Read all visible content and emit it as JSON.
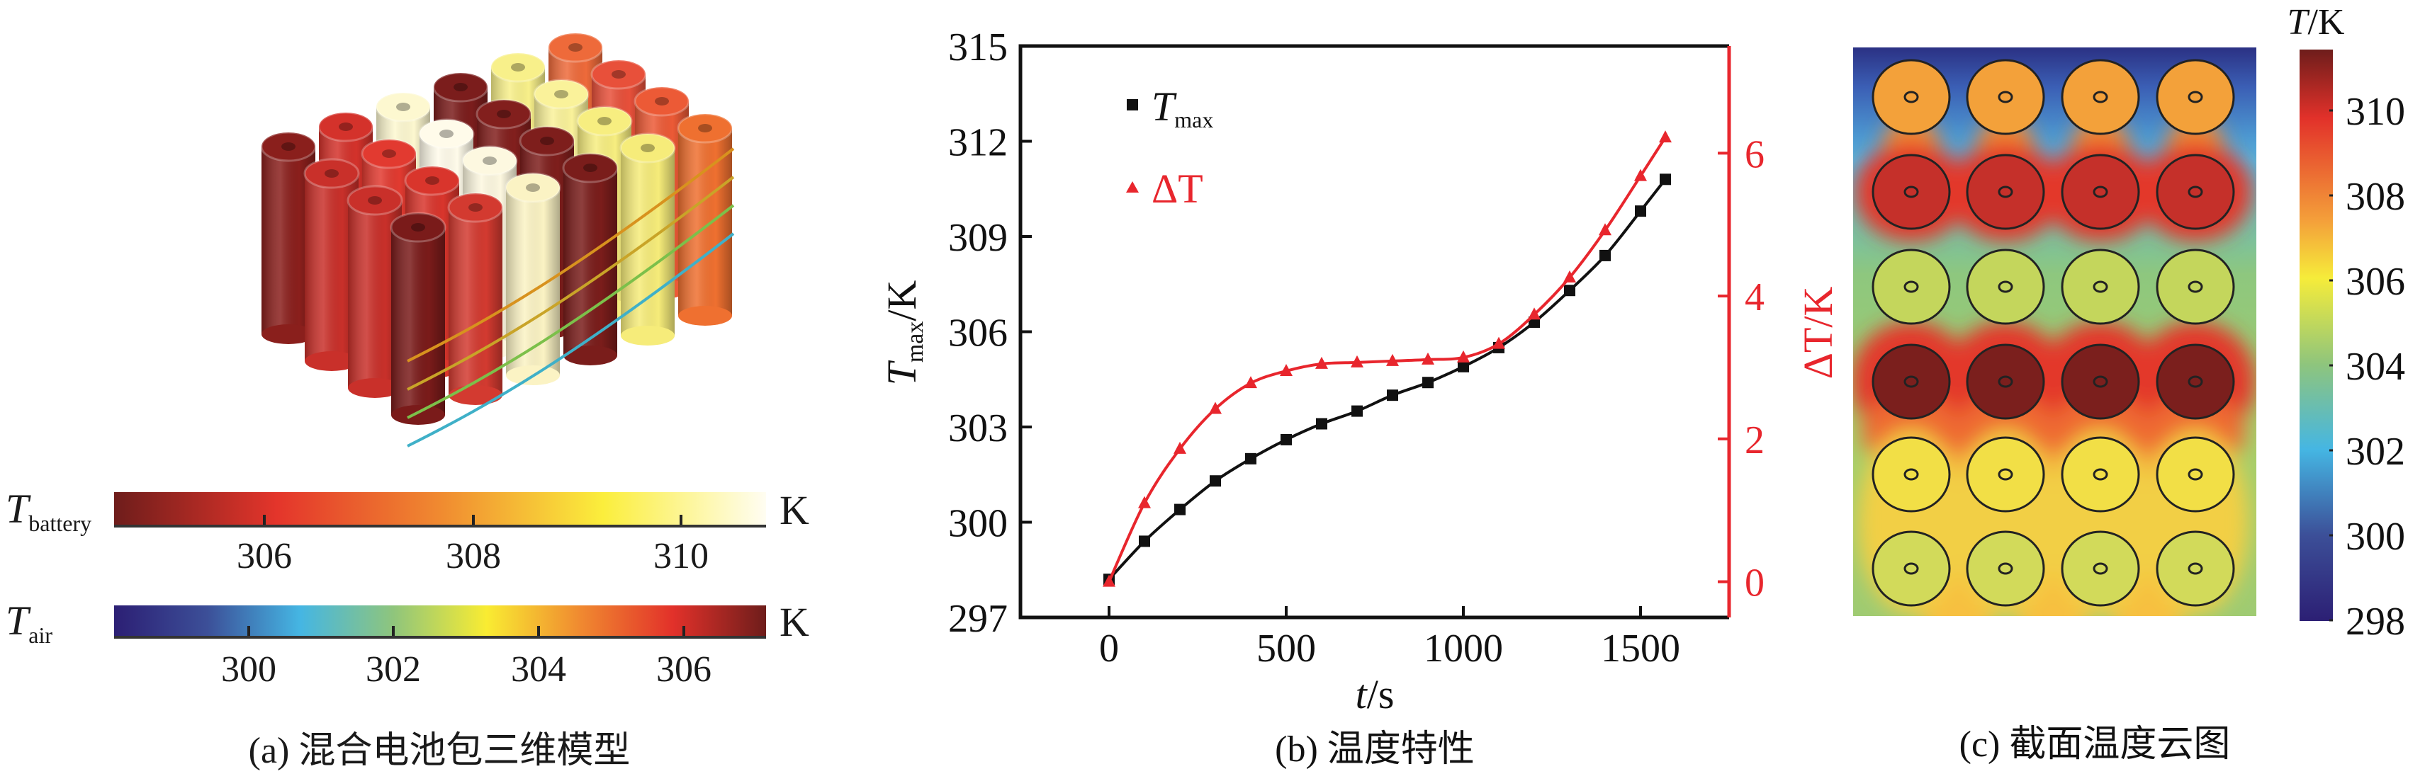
{
  "panel_a": {
    "caption": "(a) 混合电池包三维模型",
    "battery_bar": {
      "symbol": "T",
      "subscript": "battery",
      "unit": "K",
      "ticks": [
        "306",
        "308",
        "310"
      ],
      "colors": [
        "#6e1d1b",
        "#e4352b",
        "#f08a30",
        "#fbee3c",
        "#fffdf2"
      ]
    },
    "air_bar": {
      "symbol": "T",
      "subscript": "air",
      "unit": "K",
      "ticks": [
        "300",
        "302",
        "304",
        "306"
      ],
      "colors": [
        "#2c1f74",
        "#3c4f98",
        "#45b6e3",
        "#8fc57c",
        "#f9ec32",
        "#f08a30",
        "#e2312a",
        "#6e1d1b"
      ]
    }
  },
  "panel_b": {
    "caption": "(b) 温度特性",
    "legend": {
      "tmax_symbol": "T",
      "tmax_sub": "max",
      "dt_label": "ΔT"
    },
    "ylabel_left_symbol": "T",
    "ylabel_left_sub": "max",
    "ylabel_left_unit": "/K",
    "ylabel_right": "ΔT/K",
    "xlabel_sym": "t",
    "xlabel_unit": "/s"
  },
  "chart_data": {
    "type": "line",
    "title": "",
    "xlabel": "t/s",
    "ylabel": "Tmax/K",
    "ylabel_right": "ΔT/K",
    "xlim": [
      -250,
      1750
    ],
    "ylim": [
      297,
      315
    ],
    "ylim_right": [
      -0.5,
      7.5
    ],
    "xticks": [
      "0",
      "500",
      "1000",
      "1500"
    ],
    "yticks": [
      "297",
      "300",
      "303",
      "306",
      "309",
      "312",
      "315"
    ],
    "yticks_right": [
      "0",
      "2",
      "4",
      "6"
    ],
    "grid": false,
    "legend_position": "top-left",
    "x": [
      0,
      100,
      200,
      300,
      400,
      500,
      600,
      700,
      800,
      900,
      1000,
      1100,
      1200,
      1300,
      1400,
      1500,
      1570
    ],
    "series": [
      {
        "name": "Tmax",
        "axis": "left",
        "color": "#111111",
        "marker": "square",
        "values": [
          298.2,
          299.4,
          300.4,
          301.3,
          302.0,
          302.6,
          303.1,
          303.5,
          304.0,
          304.4,
          304.9,
          305.5,
          306.3,
          307.3,
          308.4,
          309.8,
          310.8
        ]
      },
      {
        "name": "ΔT",
        "axis": "right",
        "color": "#e8262d",
        "marker": "triangle",
        "values": [
          0.0,
          1.1,
          1.86,
          2.42,
          2.78,
          2.95,
          3.05,
          3.07,
          3.09,
          3.11,
          3.14,
          3.33,
          3.74,
          4.26,
          4.92,
          5.68,
          6.22
        ]
      }
    ]
  },
  "panel_c": {
    "caption": "(c) 截面温度云图",
    "colorbar_title_sym": "T",
    "colorbar_title_unit": "/K",
    "colorbar_ticks": [
      "310",
      "308",
      "306",
      "304",
      "302",
      "300",
      "298"
    ],
    "cell_row_colors": [
      "#f3a13a",
      "#c5302a",
      "#c4d65c",
      "#7b1f1d",
      "#f2df46",
      "#d2da5a"
    ]
  }
}
